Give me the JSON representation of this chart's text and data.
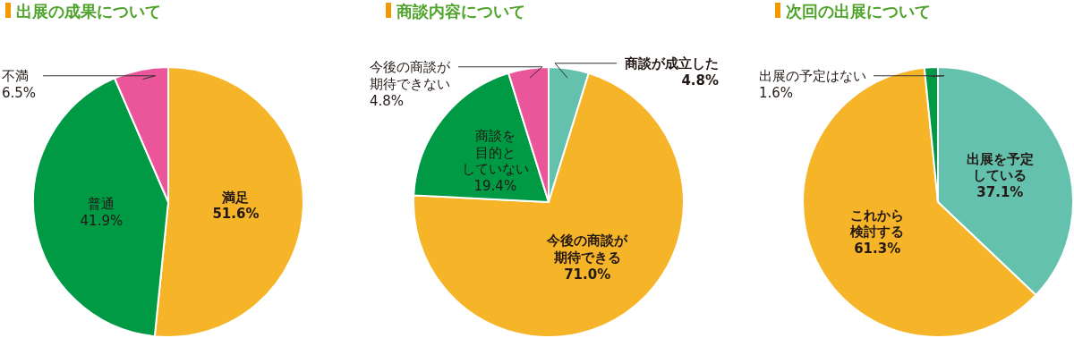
{
  "chart_data": [
    {
      "type": "pie",
      "title": "出展の成果について",
      "categories": [
        "満足",
        "普通",
        "不満"
      ],
      "values": [
        51.6,
        41.9,
        6.5
      ],
      "value_labels": [
        "51.6%",
        "41.9%",
        "6.5%"
      ],
      "colors": [
        "#f6b428",
        "#009944",
        "#ea5699"
      ]
    },
    {
      "type": "pie",
      "title": "商談内容について",
      "categories": [
        "商談が成立した",
        "今後の商談が期待できる",
        "商談を目的としていない",
        "今後の商談が期待できない"
      ],
      "values": [
        4.8,
        71.0,
        19.4,
        4.8
      ],
      "value_labels": [
        "4.8%",
        "71.0%",
        "19.4%",
        "4.8%"
      ],
      "colors": [
        "#63c1ad",
        "#f6b428",
        "#009944",
        "#ea5699"
      ]
    },
    {
      "type": "pie",
      "title": "次回の出展について",
      "categories": [
        "出展を予定している",
        "これから検討する",
        "出展の予定はない"
      ],
      "values": [
        37.1,
        61.3,
        1.6
      ],
      "value_labels": [
        "37.1%",
        "61.3%",
        "1.6%"
      ],
      "colors": [
        "#63c1ad",
        "#f6b428",
        "#009944"
      ]
    }
  ]
}
